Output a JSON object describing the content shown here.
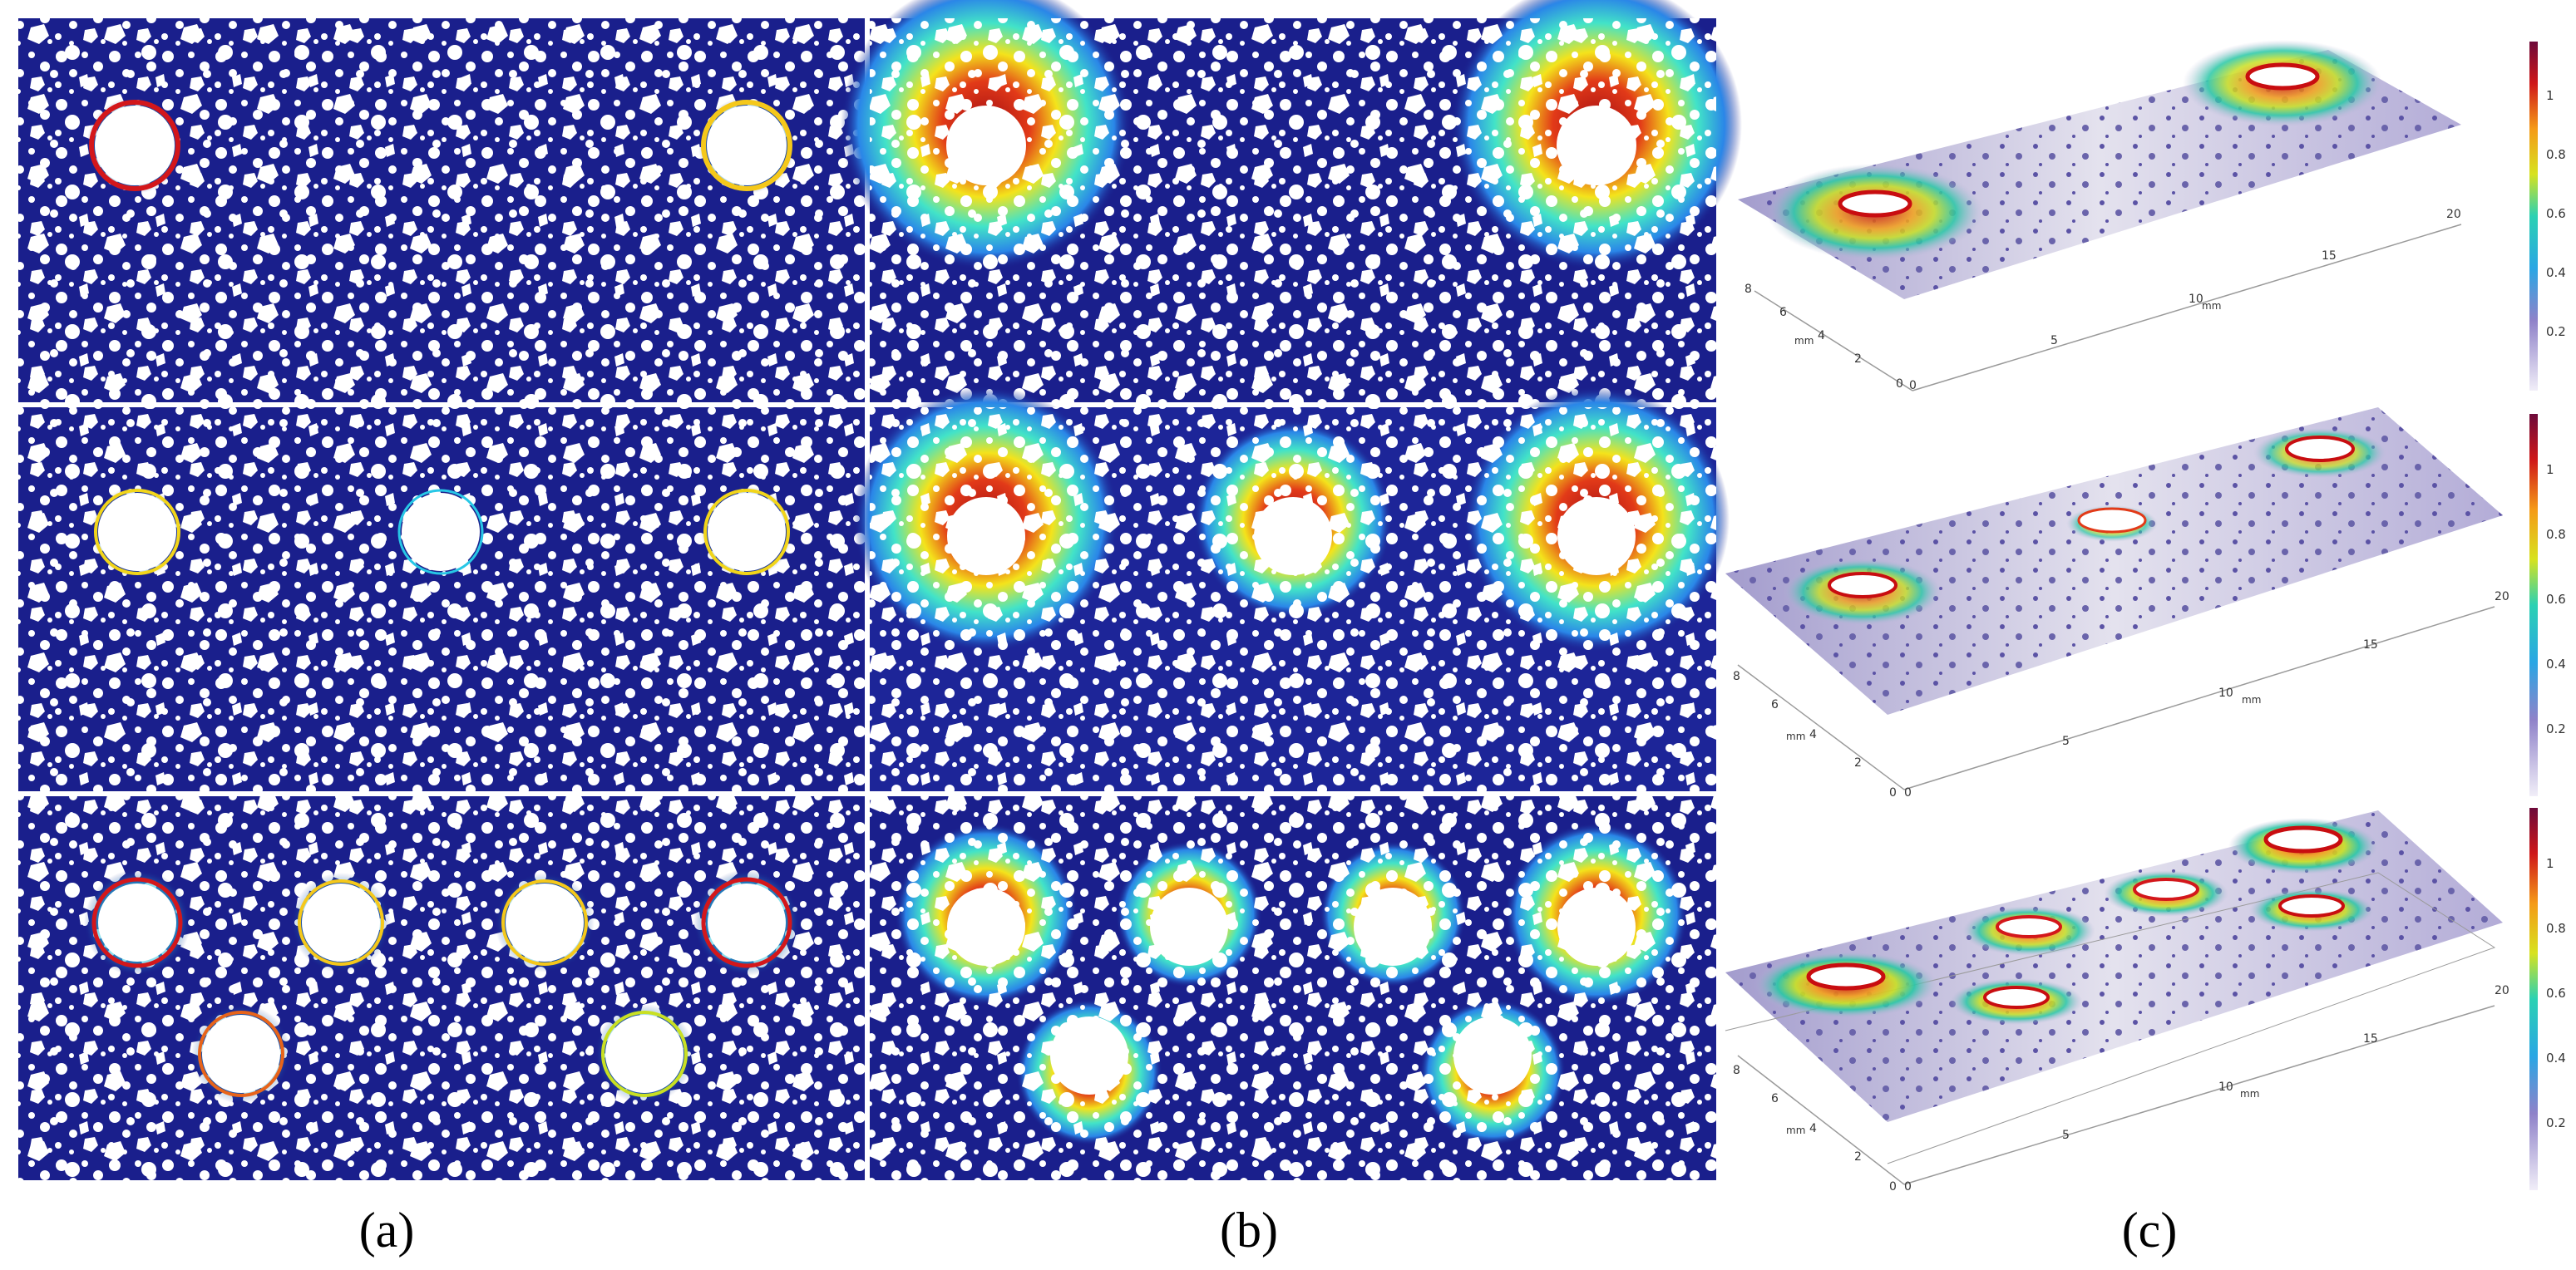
{
  "figure": {
    "captions": {
      "a": "(a)",
      "b": "(b)",
      "c": "(c)"
    },
    "colors": {
      "background_matrix": "#1a1f8c",
      "pore": "#ffffff",
      "field_low": "#27c7e6",
      "field_mid": "#f7e21b",
      "field_high": "#c80d10",
      "field_max": "#7a0a24"
    },
    "rows": [
      {
        "holes": 2
      },
      {
        "holes": 3
      },
      {
        "holes": 6
      }
    ],
    "plot3d": {
      "x_ticks": [
        "0",
        "5",
        "10",
        "15",
        "20"
      ],
      "y_ticks": [
        "0",
        "2",
        "4",
        "6",
        "8"
      ],
      "x_unit": "mm",
      "y_unit": "mm",
      "colorbar_ticks": [
        "1",
        "0.8",
        "0.6",
        "0.4",
        "0.2"
      ]
    }
  }
}
